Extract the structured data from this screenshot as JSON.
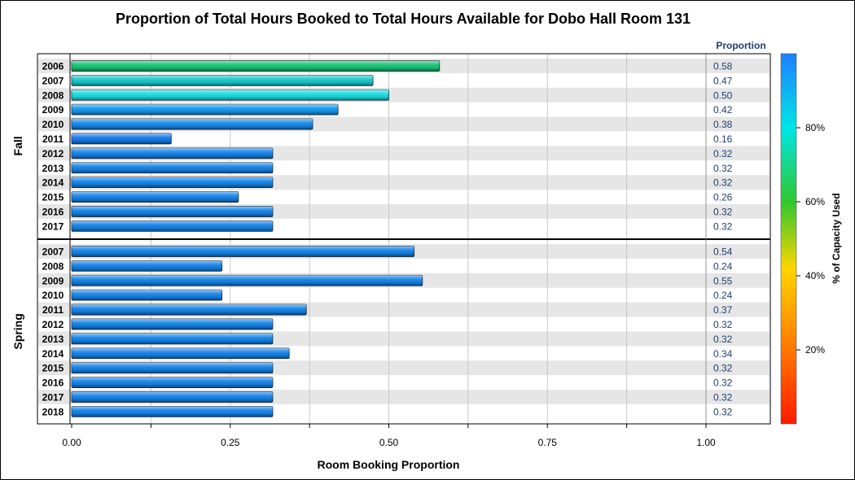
{
  "chart_data": {
    "type": "bar",
    "orientation": "horizontal",
    "title": "Proportion of Total Hours Booked to Total Hours Available for Dobo Hall Room 131",
    "xlabel": "Room Booking Proportion",
    "xlim": [
      0,
      1.1
    ],
    "xticks": [
      "0.00",
      "0.25",
      "0.50",
      "0.75",
      "1.00"
    ],
    "xtick_values": [
      0,
      0.25,
      0.5,
      0.75,
      1.0
    ],
    "grid": true,
    "value_column_header": "Proportion",
    "colorbar": {
      "label": "% of Capacity Used",
      "ticks": [
        "20%",
        "40%",
        "60%",
        "80%"
      ],
      "tick_values": [
        20,
        40,
        60,
        80
      ],
      "range": [
        0,
        100
      ],
      "colors": [
        "#ff1a00",
        "#ff7700",
        "#ffd500",
        "#2fc82f",
        "#00e6e6",
        "#1e7fff"
      ]
    },
    "groups": [
      {
        "name": "Fall",
        "categories": [
          "2006",
          "2007",
          "2008",
          "2009",
          "2010",
          "2011",
          "2012",
          "2013",
          "2014",
          "2015",
          "2016",
          "2017"
        ],
        "values": [
          0.58,
          0.475,
          0.5,
          0.42,
          0.38,
          0.157,
          0.317,
          0.317,
          0.317,
          0.263,
          0.317,
          0.317
        ],
        "labels": [
          "0.58",
          "0.47",
          "0.50",
          "0.42",
          "0.38",
          "0.16",
          "0.32",
          "0.32",
          "0.32",
          "0.26",
          "0.32",
          "0.32"
        ],
        "colors": [
          "#16c572",
          "#18c9cc",
          "#17dde0",
          "#1296ee",
          "#1289ec",
          "#1278ea",
          "#1283ea",
          "#1283ea",
          "#1283ea",
          "#1283ea",
          "#1283ea",
          "#1283ea"
        ]
      },
      {
        "name": "Spring",
        "categories": [
          "2007",
          "2008",
          "2009",
          "2010",
          "2011",
          "2012",
          "2013",
          "2014",
          "2015",
          "2016",
          "2017",
          "2018"
        ],
        "values": [
          0.54,
          0.237,
          0.553,
          0.237,
          0.37,
          0.317,
          0.317,
          0.343,
          0.317,
          0.317,
          0.317,
          0.317
        ],
        "labels": [
          "0.54",
          "0.24",
          "0.55",
          "0.24",
          "0.37",
          "0.32",
          "0.32",
          "0.34",
          "0.32",
          "0.32",
          "0.32",
          "0.32"
        ],
        "colors": [
          "#1283ea",
          "#1283ea",
          "#1283ea",
          "#1283ea",
          "#1283ea",
          "#1283ea",
          "#1283ea",
          "#1283ea",
          "#1283ea",
          "#1283ea",
          "#1283ea",
          "#1283ea"
        ]
      }
    ]
  }
}
